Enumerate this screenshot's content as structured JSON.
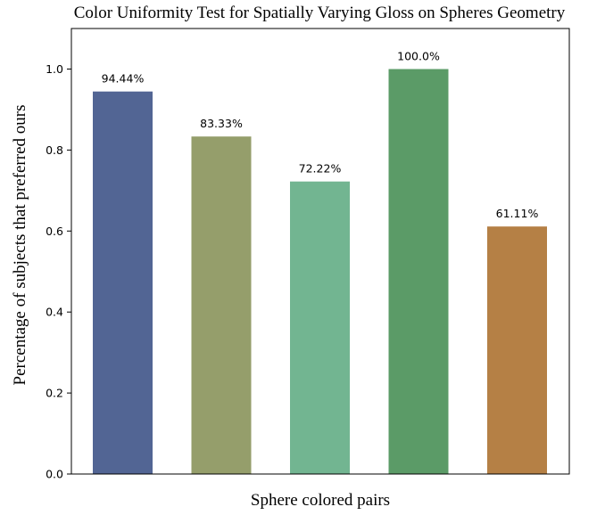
{
  "chart_data": {
    "type": "bar",
    "title": "Color Uniformity Test for Spatially Varying  Gloss on Spheres Geometry",
    "xlabel": "Sphere colored pairs",
    "ylabel": "Percentage of subjects that preferred ours",
    "categories": [
      "",
      "",
      "",
      "",
      ""
    ],
    "values": [
      0.9444,
      0.8333,
      0.7222,
      1.0,
      0.6111
    ],
    "data_labels": [
      "94.44%",
      "83.33%",
      "72.22%",
      "100.0%",
      "61.11%"
    ],
    "colors": [
      "#526594",
      "#959e6b",
      "#72b591",
      "#5b9b67",
      "#b58045"
    ],
    "ylim": [
      0,
      1.1
    ],
    "yticks": [
      0.0,
      0.2,
      0.4,
      0.6,
      0.8,
      1.0
    ],
    "ytick_labels": [
      "0.0",
      "0.2",
      "0.4",
      "0.6",
      "0.8",
      "1.0"
    ],
    "grid": false,
    "legend": "none"
  }
}
